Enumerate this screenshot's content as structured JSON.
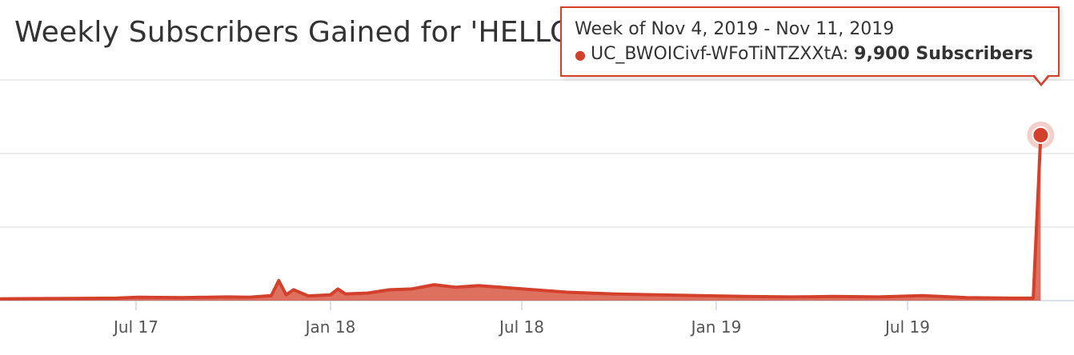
{
  "chart_data": {
    "type": "area",
    "title": "Weekly Subscribers Gained for 'HELLO SUPERKETTE'",
    "xlabel": "",
    "ylabel": "",
    "x_tick_labels": [
      "Jul 17",
      "Jan 18",
      "Jul 18",
      "Jan 19",
      "Jul 19"
    ],
    "x_tick_dates": [
      "2017-07-01",
      "2018-01-01",
      "2018-07-01",
      "2019-01-01",
      "2019-07-01"
    ],
    "x_range": [
      "2016-11-14",
      "2019-12-01"
    ],
    "ylim": [
      0,
      13200
    ],
    "grid": true,
    "legend": "none",
    "color": "#d3402b",
    "series": [
      {
        "name": "UC_BWOICivf-WFoTiNTZXXtA",
        "points": [
          [
            "2016-11-14",
            60
          ],
          [
            "2016-12-26",
            80
          ],
          [
            "2017-02-06",
            100
          ],
          [
            "2017-03-20",
            120
          ],
          [
            "2017-05-01",
            130
          ],
          [
            "2017-06-12",
            150
          ],
          [
            "2017-07-03",
            200
          ],
          [
            "2017-08-14",
            180
          ],
          [
            "2017-09-25",
            220
          ],
          [
            "2017-10-16",
            200
          ],
          [
            "2017-11-06",
            300
          ],
          [
            "2017-11-13",
            1200
          ],
          [
            "2017-11-20",
            350
          ],
          [
            "2017-11-27",
            650
          ],
          [
            "2017-12-11",
            280
          ],
          [
            "2018-01-01",
            350
          ],
          [
            "2018-01-08",
            700
          ],
          [
            "2018-01-15",
            400
          ],
          [
            "2018-02-05",
            450
          ],
          [
            "2018-02-26",
            650
          ],
          [
            "2018-03-19",
            700
          ],
          [
            "2018-04-09",
            950
          ],
          [
            "2018-04-30",
            800
          ],
          [
            "2018-05-21",
            900
          ],
          [
            "2018-06-11",
            800
          ],
          [
            "2018-07-02",
            700
          ],
          [
            "2018-08-13",
            500
          ],
          [
            "2018-09-24",
            400
          ],
          [
            "2018-11-05",
            350
          ],
          [
            "2018-12-17",
            300
          ],
          [
            "2019-01-28",
            250
          ],
          [
            "2019-03-11",
            220
          ],
          [
            "2019-04-22",
            250
          ],
          [
            "2019-06-03",
            220
          ],
          [
            "2019-07-15",
            300
          ],
          [
            "2019-08-26",
            180
          ],
          [
            "2019-10-07",
            150
          ],
          [
            "2019-10-28",
            150
          ],
          [
            "2019-11-04",
            9900
          ]
        ]
      }
    ],
    "highlight": {
      "x": "2019-11-04",
      "y": 9900
    }
  },
  "tooltip": {
    "header": "Week of Nov 4, 2019 - Nov 11, 2019",
    "series_name": "UC_BWOICivf-WFoTiNTZXXtA:",
    "value": "9,900 Subscribers"
  }
}
